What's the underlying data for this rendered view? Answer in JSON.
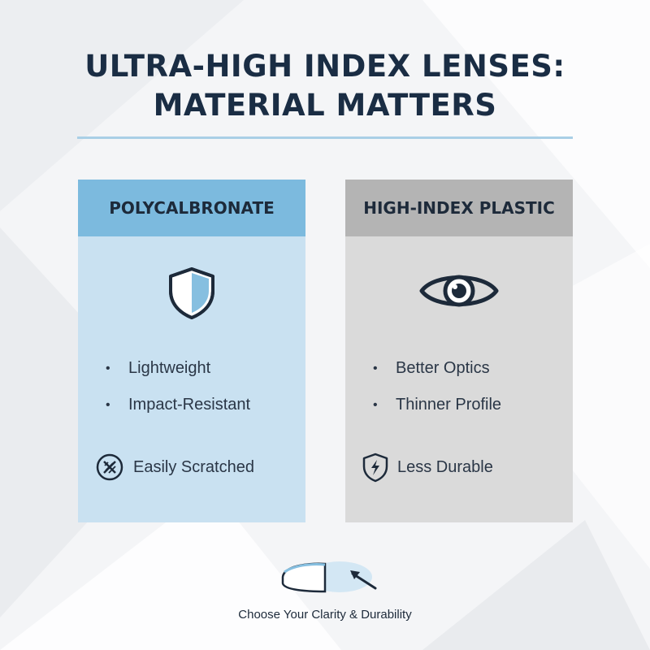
{
  "title": {
    "line1": "ULTRA-HIGH INDEX LENSES:",
    "line2": "MATERIAL MATTERS"
  },
  "left_panel": {
    "heading": "POLYCALBRONATE",
    "icon": "shield-icon",
    "pros": [
      "Lightweight",
      "Impact-Resistant"
    ],
    "con": {
      "icon": "no-scratch-icon",
      "label": "Easily Scratched"
    }
  },
  "right_panel": {
    "heading": "HIGH-INDEX PLASTIC",
    "icon": "eye-icon",
    "pros": [
      "Better Optics",
      "Thinner Profile"
    ],
    "con": {
      "icon": "broken-shield-icon",
      "label": "Less Durable"
    }
  },
  "footer": {
    "icon": "lens-arrow-icon",
    "tagline": "Choose Your Clarity & Durability"
  },
  "colors": {
    "left_header": "#7cbade",
    "left_body": "#c9e1f1",
    "right_header": "#b4b4b4",
    "right_body": "#dadada",
    "title": "#1a2d44",
    "divider": "#a9cfe6"
  }
}
